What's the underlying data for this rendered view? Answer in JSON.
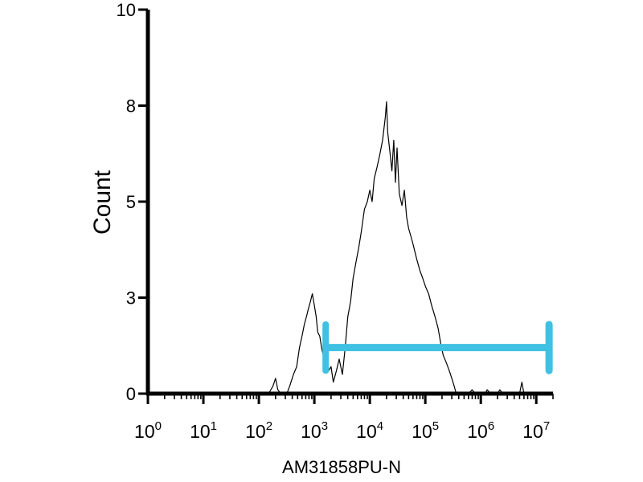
{
  "chart_data": {
    "type": "line",
    "title": "",
    "xlabel": "AM31858PU-N",
    "ylabel": "Count",
    "x_scale": "log",
    "xlim": [
      1,
      20000000
    ],
    "ylim": [
      0,
      10
    ],
    "grid": false,
    "legend": "none",
    "y_ticks": [
      {
        "value": 0,
        "label": "0"
      },
      {
        "value": 2.5,
        "label": "3"
      },
      {
        "value": 5,
        "label": "5"
      },
      {
        "value": 7.5,
        "label": "8"
      },
      {
        "value": 10,
        "label": "10"
      }
    ],
    "x_ticks": [
      {
        "base": "10",
        "exp": "0",
        "value": 1
      },
      {
        "base": "10",
        "exp": "1",
        "value": 10
      },
      {
        "base": "10",
        "exp": "2",
        "value": 100
      },
      {
        "base": "10",
        "exp": "3",
        "value": 1000
      },
      {
        "base": "10",
        "exp": "4",
        "value": 10000
      },
      {
        "base": "10",
        "exp": "5",
        "value": 100000
      },
      {
        "base": "10",
        "exp": "6",
        "value": 1000000
      },
      {
        "base": "10",
        "exp": "7",
        "value": 10000000
      }
    ],
    "series": [
      {
        "color": "#000000",
        "points": [
          [
            150,
            0
          ],
          [
            180,
            0.2
          ],
          [
            200,
            0.4
          ],
          [
            220,
            0.1
          ],
          [
            250,
            0
          ],
          [
            320,
            0
          ],
          [
            360,
            0.2
          ],
          [
            420,
            0.5
          ],
          [
            480,
            0.7
          ],
          [
            540,
            1.2
          ],
          [
            600,
            1.5
          ],
          [
            660,
            1.8
          ],
          [
            720,
            2.0
          ],
          [
            780,
            2.2
          ],
          [
            850,
            2.4
          ],
          [
            920,
            2.6
          ],
          [
            1000,
            2.3
          ],
          [
            1080,
            2.0
          ],
          [
            1150,
            1.6
          ],
          [
            1250,
            1.5
          ],
          [
            1350,
            1.2
          ],
          [
            1450,
            1.0
          ],
          [
            1600,
            0.8
          ],
          [
            1800,
            0.6
          ],
          [
            2000,
            0.7
          ],
          [
            2200,
            0.3
          ],
          [
            2500,
            0.6
          ],
          [
            2800,
            0.9
          ],
          [
            3200,
            0.5
          ],
          [
            3600,
            1.2
          ],
          [
            4000,
            2.0
          ],
          [
            4500,
            2.4
          ],
          [
            5000,
            3.0
          ],
          [
            5600,
            3.4
          ],
          [
            6300,
            3.8
          ],
          [
            7000,
            4.2
          ],
          [
            8000,
            4.8
          ],
          [
            9000,
            5.0
          ],
          [
            10000,
            5.3
          ],
          [
            11000,
            5.0
          ],
          [
            12000,
            5.6
          ],
          [
            13500,
            5.9
          ],
          [
            15000,
            6.2
          ],
          [
            17000,
            6.6
          ],
          [
            19000,
            7.2
          ],
          [
            20000,
            7.6
          ],
          [
            21000,
            6.8
          ],
          [
            23000,
            6.3
          ],
          [
            25000,
            5.8
          ],
          [
            27000,
            6.6
          ],
          [
            29000,
            5.5
          ],
          [
            31000,
            6.4
          ],
          [
            34000,
            5.2
          ],
          [
            38000,
            4.9
          ],
          [
            42000,
            5.3
          ],
          [
            46000,
            4.6
          ],
          [
            50000,
            4.3
          ],
          [
            55000,
            4.1
          ],
          [
            60000,
            3.9
          ],
          [
            70000,
            3.5
          ],
          [
            80000,
            3.2
          ],
          [
            90000,
            3.0
          ],
          [
            100000,
            2.8
          ],
          [
            115000,
            2.6
          ],
          [
            130000,
            2.3
          ],
          [
            150000,
            2.0
          ],
          [
            170000,
            1.7
          ],
          [
            190000,
            1.3
          ],
          [
            210000,
            1.0
          ],
          [
            240000,
            0.8
          ],
          [
            270000,
            0.6
          ],
          [
            300000,
            0.4
          ],
          [
            330000,
            0.2
          ],
          [
            360000,
            0
          ],
          [
            400000,
            0
          ],
          [
            600000,
            0
          ],
          [
            700000,
            0.1
          ],
          [
            800000,
            0
          ],
          [
            1200000,
            0
          ],
          [
            1300000,
            0.1
          ],
          [
            1500000,
            0
          ],
          [
            2000000,
            0
          ],
          [
            2200000,
            0.1
          ],
          [
            2500000,
            0
          ],
          [
            5000000,
            0
          ],
          [
            5500000,
            0.3
          ],
          [
            6000000,
            0
          ],
          [
            20000000,
            0
          ]
        ]
      }
    ],
    "gate": {
      "color": "#3ec1e3",
      "x_start": 1600,
      "x_end": 17000000,
      "y": 1.2,
      "cap_half_height": 0.6
    }
  }
}
